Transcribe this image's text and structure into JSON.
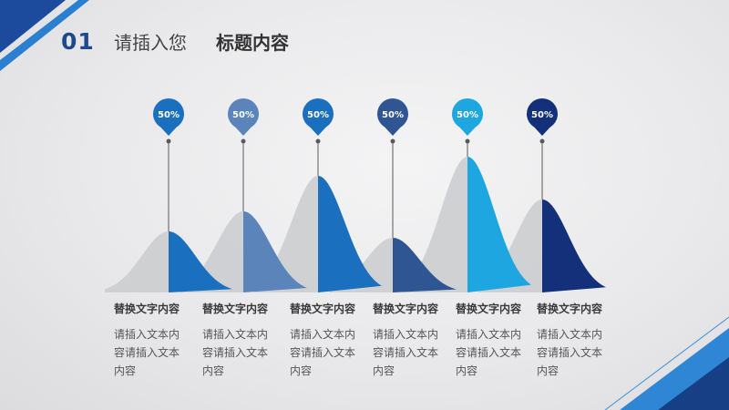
{
  "header": {
    "number": "01",
    "title_light": "请插入您",
    "title_bold": "标题内容"
  },
  "items": [
    {
      "badge": "50%",
      "title": "替换文字内容",
      "text": "请插入文本内容请插入文本内容",
      "color": "#1a6fbf"
    },
    {
      "badge": "50%",
      "title": "替换文字内容",
      "text": "请插入文本内容请插入文本内容",
      "color": "#5a84ba"
    },
    {
      "badge": "50%",
      "title": "替换文字内容",
      "text": "请插入文本内容请插入文本内容",
      "color": "#1a6fbf"
    },
    {
      "badge": "50%",
      "title": "替换文字内容",
      "text": "请插入文本内容请插入文本内容",
      "color": "#2f5593"
    },
    {
      "badge": "50%",
      "title": "替换文字内容",
      "text": "请插入文本内容请插入文本内容",
      "color": "#1ea6e0"
    },
    {
      "badge": "50%",
      "title": "替换文字内容",
      "text": "请插入文本内容请插入文本内容",
      "color": "#14307a"
    }
  ]
}
